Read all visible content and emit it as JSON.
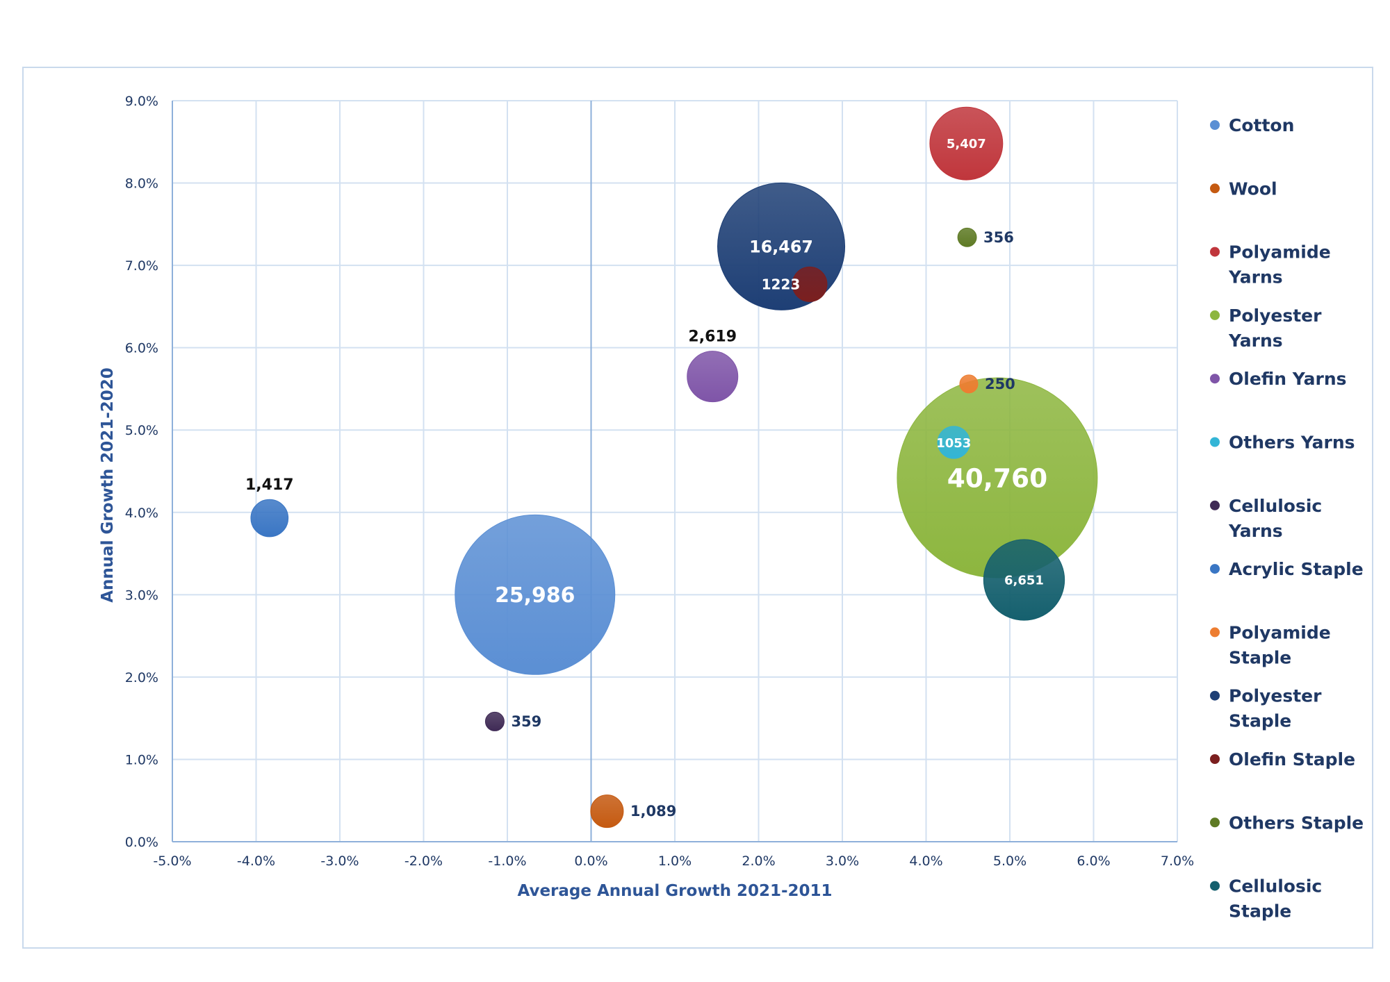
{
  "chart_data": {
    "type": "bubble",
    "title": "",
    "xlabel": "Average Annual Growth 2021-2011",
    "ylabel": "Annual Growth 2021-2020",
    "xlim": [
      -0.05,
      0.07
    ],
    "ylim": [
      0,
      0.09
    ],
    "x_ticks": [
      "-5.0%",
      "-4.0%",
      "-3.0%",
      "-2.0%",
      "-1.0%",
      "0.0%",
      "1.0%",
      "2.0%",
      "3.0%",
      "4.0%",
      "5.0%",
      "6.0%",
      "7.0%"
    ],
    "y_ticks": [
      "0.0%",
      "1.0%",
      "2.0%",
      "3.0%",
      "4.0%",
      "5.0%",
      "6.0%",
      "7.0%",
      "8.0%",
      "9.0%"
    ],
    "grid": true,
    "legend_position": "right",
    "series": [
      {
        "name": "Cotton",
        "color": "#5b8fd4",
        "x": -0.0067,
        "y": 0.03,
        "size": 25986,
        "label": "25,986",
        "label_pos": "center"
      },
      {
        "name": "Wool",
        "color": "#c55a11",
        "x": 0.0019,
        "y": 0.0037,
        "size": 1089,
        "label": "1,089",
        "label_pos": "right"
      },
      {
        "name": "Polyamide Yarns",
        "color": "#c0363c",
        "x": 0.0448,
        "y": 0.0848,
        "size": 5407,
        "label": "5,407",
        "label_pos": "center"
      },
      {
        "name": "Polyester Yarns",
        "color": "#8db63f",
        "x": 0.0485,
        "y": 0.0442,
        "size": 40760,
        "label": "40,760",
        "label_pos": "center"
      },
      {
        "name": "Olefin Yarns",
        "color": "#7f55a8",
        "x": 0.0145,
        "y": 0.0565,
        "size": 2619,
        "label": "2,619",
        "label_pos": "above"
      },
      {
        "name": "Others Yarns",
        "color": "#33b5d6",
        "x": 0.0433,
        "y": 0.0485,
        "size": 1053,
        "label": "1053",
        "label_pos": "center"
      },
      {
        "name": "Cellulosic Yarns",
        "color": "#3f2a55",
        "x": -0.0115,
        "y": 0.0146,
        "size": 359,
        "label": "359",
        "label_pos": "right"
      },
      {
        "name": "Acrylic Staple",
        "color": "#3a76c4",
        "x": -0.0384,
        "y": 0.0393,
        "size": 1417,
        "label": "1,417",
        "label_pos": "above"
      },
      {
        "name": "Polyamide Staple",
        "color": "#ed7d31",
        "x": 0.0451,
        "y": 0.0556,
        "size": 250,
        "label": "250",
        "label_pos": "right"
      },
      {
        "name": "Polyester Staple",
        "color": "#1e3f75",
        "x": 0.0227,
        "y": 0.0723,
        "size": 16467,
        "label": "16,467",
        "label_pos": "center"
      },
      {
        "name": "Olefin Staple",
        "color": "#7b1f1f",
        "x": 0.0261,
        "y": 0.0677,
        "size": 1223,
        "label": "1223",
        "label_pos": "left"
      },
      {
        "name": "Others Staple",
        "color": "#5e7a24",
        "x": 0.0449,
        "y": 0.0734,
        "size": 356,
        "label": "356",
        "label_pos": "right"
      },
      {
        "name": "Cellulosic Staple",
        "color": "#15606e",
        "x": 0.0517,
        "y": 0.0318,
        "size": 6651,
        "label": "6,651",
        "label_pos": "center"
      }
    ]
  }
}
